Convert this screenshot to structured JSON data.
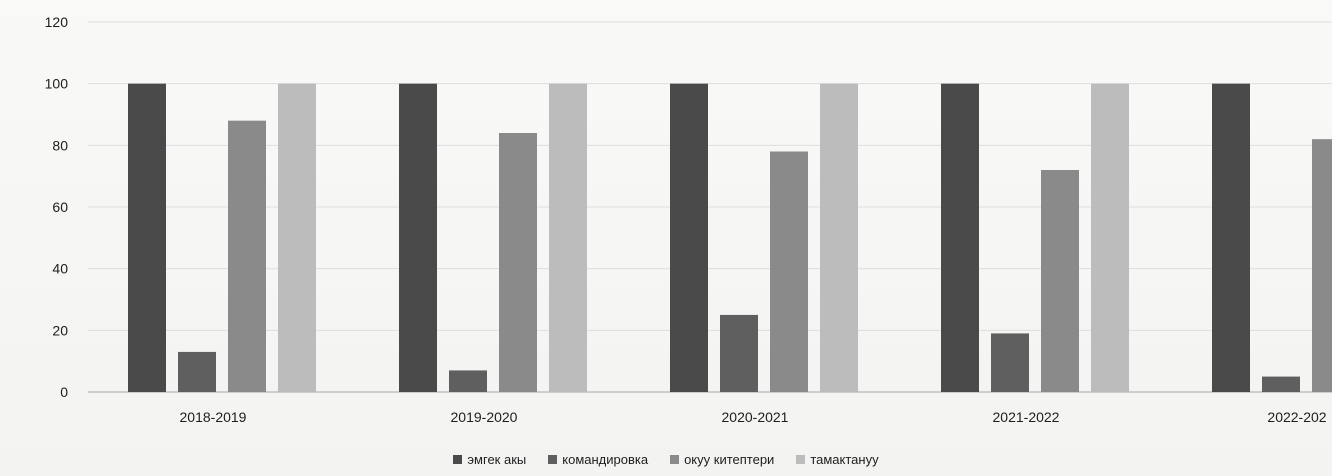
{
  "chart_data": {
    "type": "bar",
    "categories": [
      "2018-2019",
      "2019-2020",
      "2020-2021",
      "2021-2022",
      "2022-202"
    ],
    "series": [
      {
        "name": "эмгек акы",
        "values": [
          100,
          100,
          100,
          100,
          100
        ],
        "color": "#4a4a4a"
      },
      {
        "name": "командировка",
        "values": [
          13,
          7,
          25,
          19,
          5
        ],
        "color": "#5f5f5f"
      },
      {
        "name": "окуу китептери",
        "values": [
          88,
          84,
          78,
          72,
          82
        ],
        "color": "#8a8a8a"
      },
      {
        "name": "тамактануу",
        "values": [
          100,
          100,
          100,
          100,
          null
        ],
        "color": "#bcbcbc"
      }
    ],
    "yticks": [
      "0",
      "20",
      "40",
      "60",
      "80",
      "100",
      "120"
    ],
    "ylim": [
      0,
      120
    ],
    "grid": true,
    "legend_position": "bottom-center"
  }
}
